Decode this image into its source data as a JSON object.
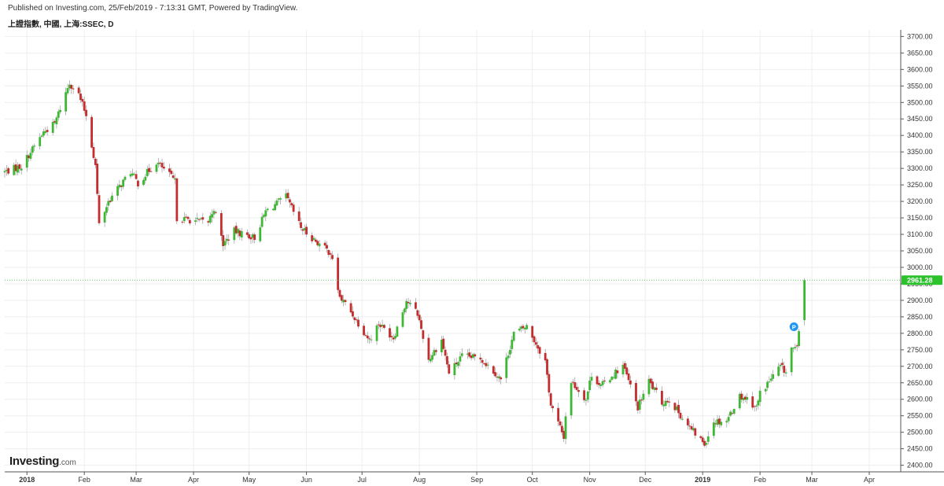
{
  "header": {
    "published": "Published on Investing.com, 25/Feb/2019 - 7:13:31 GMT, Powered by TradingView.",
    "symbol": "上證指數, 中國, 上海:SSEC, D"
  },
  "logo": {
    "name": "Investing",
    "suffix": ".com"
  },
  "colors": {
    "up": "#3cb832",
    "down": "#c42d2d",
    "price_line": "#5ac85a",
    "price_label_bg": "#2cc22c",
    "grid": "#eeeeee",
    "axis_text": "#333333",
    "marker": "#2196f3"
  },
  "chart_data": {
    "type": "candlestick",
    "y_axis": {
      "min": 2380,
      "max": 3720,
      "ticks": [
        2400,
        2450,
        2500,
        2550,
        2600,
        2650,
        2700,
        2750,
        2800,
        2850,
        2900,
        2950,
        3000,
        3050,
        3100,
        3150,
        3200,
        3250,
        3300,
        3350,
        3400,
        3450,
        3500,
        3550,
        3600,
        3650,
        3700
      ],
      "position": "right"
    },
    "x_axis": {
      "start": "2017-12-20",
      "end": "2019-04-18",
      "labels": [
        {
          "date": "2018-01-01",
          "text": "2018",
          "bold": true
        },
        {
          "date": "2018-02-01",
          "text": "Feb"
        },
        {
          "date": "2018-03-01",
          "text": "Mar"
        },
        {
          "date": "2018-04-01",
          "text": "Apr"
        },
        {
          "date": "2018-05-01",
          "text": "May"
        },
        {
          "date": "2018-06-01",
          "text": "Jun"
        },
        {
          "date": "2018-07-01",
          "text": "Jul"
        },
        {
          "date": "2018-08-01",
          "text": "Aug"
        },
        {
          "date": "2018-09-01",
          "text": "Sep"
        },
        {
          "date": "2018-10-01",
          "text": "Oct"
        },
        {
          "date": "2018-11-01",
          "text": "Nov"
        },
        {
          "date": "2018-12-01",
          "text": "Dec"
        },
        {
          "date": "2019-01-01",
          "text": "2019",
          "bold": true
        },
        {
          "date": "2019-02-01",
          "text": "Feb"
        },
        {
          "date": "2019-03-01",
          "text": "Mar"
        },
        {
          "date": "2019-04-01",
          "text": "Apr"
        }
      ]
    },
    "last_price": {
      "value": 2961.28,
      "label": "2961.28"
    },
    "grid": true,
    "event_marker": {
      "date": "2019-02-21",
      "value": 2820,
      "label": "P"
    },
    "close_path": [
      [
        "2017-12-20",
        3290
      ],
      [
        "2017-12-29",
        3307
      ],
      [
        "2018-01-10",
        3410
      ],
      [
        "2018-01-16",
        3436
      ],
      [
        "2018-01-24",
        3560
      ],
      [
        "2018-01-29",
        3523
      ],
      [
        "2018-02-02",
        3462
      ],
      [
        "2018-02-07",
        3309
      ],
      [
        "2018-02-09",
        3130
      ],
      [
        "2018-02-14",
        3200
      ],
      [
        "2018-02-26",
        3290
      ],
      [
        "2018-03-02",
        3255
      ],
      [
        "2018-03-12",
        3320
      ],
      [
        "2018-03-19",
        3280
      ],
      [
        "2018-03-22",
        3260
      ],
      [
        "2018-03-23",
        3150
      ],
      [
        "2018-04-04",
        3140
      ],
      [
        "2018-04-09",
        3138
      ],
      [
        "2018-04-12",
        3180
      ],
      [
        "2018-04-17",
        3070
      ],
      [
        "2018-04-23",
        3110
      ],
      [
        "2018-05-04",
        3090
      ],
      [
        "2018-05-10",
        3170
      ],
      [
        "2018-05-21",
        3214
      ],
      [
        "2018-05-29",
        3120
      ],
      [
        "2018-06-04",
        3090
      ],
      [
        "2018-06-08",
        3070
      ],
      [
        "2018-06-14",
        3044
      ],
      [
        "2018-06-19",
        2908
      ],
      [
        "2018-06-22",
        2890
      ],
      [
        "2018-07-05",
        2780
      ],
      [
        "2018-07-10",
        2830
      ],
      [
        "2018-07-18",
        2787
      ],
      [
        "2018-07-25",
        2900
      ],
      [
        "2018-07-31",
        2860
      ],
      [
        "2018-08-06",
        2720
      ],
      [
        "2018-08-13",
        2780
      ],
      [
        "2018-08-17",
        2680
      ],
      [
        "2018-08-24",
        2730
      ],
      [
        "2018-09-03",
        2725
      ],
      [
        "2018-09-11",
        2680
      ],
      [
        "2018-09-14",
        2660
      ],
      [
        "2018-09-21",
        2800
      ],
      [
        "2018-09-28",
        2821
      ],
      [
        "2018-10-08",
        2716
      ],
      [
        "2018-10-11",
        2583
      ],
      [
        "2018-10-18",
        2486
      ],
      [
        "2018-10-19",
        2550
      ],
      [
        "2018-10-22",
        2654
      ],
      [
        "2018-10-30",
        2600
      ],
      [
        "2018-11-02",
        2676
      ],
      [
        "2018-11-07",
        2640
      ],
      [
        "2018-11-19",
        2703
      ],
      [
        "2018-11-27",
        2575
      ],
      [
        "2018-12-03",
        2655
      ],
      [
        "2018-12-10",
        2590
      ],
      [
        "2018-12-14",
        2600
      ],
      [
        "2018-12-24",
        2520
      ],
      [
        "2019-01-02",
        2465
      ],
      [
        "2019-01-07",
        2533
      ],
      [
        "2019-01-14",
        2536
      ],
      [
        "2019-01-21",
        2610
      ],
      [
        "2019-01-25",
        2602
      ],
      [
        "2019-01-30",
        2575
      ],
      [
        "2019-02-01",
        2618
      ],
      [
        "2019-02-12",
        2700
      ],
      [
        "2019-02-15",
        2682
      ],
      [
        "2019-02-18",
        2754
      ],
      [
        "2019-02-21",
        2751
      ],
      [
        "2019-02-22",
        2804
      ],
      [
        "2019-02-25",
        2961
      ]
    ]
  }
}
